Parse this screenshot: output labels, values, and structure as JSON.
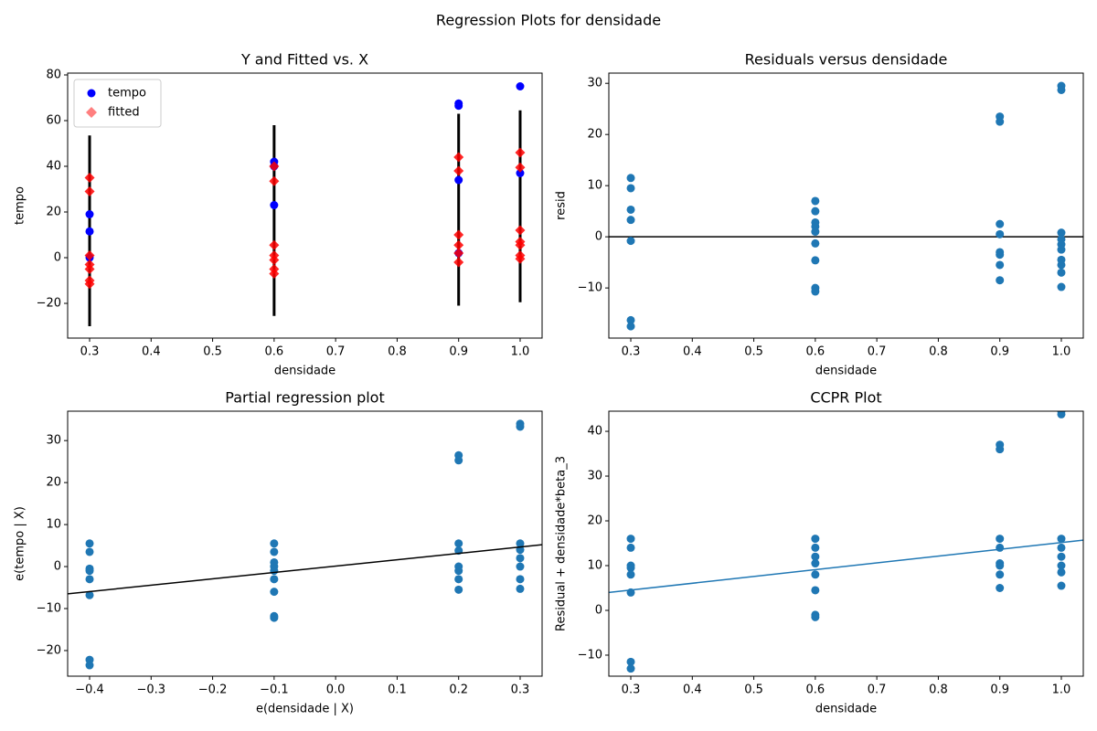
{
  "title": "Regression Plots for densidade",
  "chart_data": [
    {
      "type": "scatter",
      "title": "Y and Fitted vs. X",
      "x_label": "densidade",
      "y_label": "tempo",
      "xlim": [
        0.2643,
        1.0357
      ],
      "ylim": [
        -35.2,
        80.8
      ],
      "xticks": [
        0.3,
        0.4,
        0.5,
        0.6,
        0.7,
        0.8,
        0.9,
        {
          "value": 1,
          "label": "1.0"
        }
      ],
      "yticks": [
        {
          "value": -20,
          "label": "−20"
        },
        0,
        20,
        40,
        60,
        80
      ],
      "legend": "upper left",
      "intervals": {
        "color": "#000000",
        "x": [
          0.3,
          0.6,
          0.9,
          1.0
        ],
        "low": [
          -30,
          -25.5,
          -21,
          -19.5
        ],
        "high": [
          53.5,
          58,
          63,
          64.5
        ]
      },
      "series": [
        {
          "name": "tempo",
          "color": "#0000ff",
          "marker": "circle",
          "x": [
            0.3,
            0.3,
            0.3,
            0.6,
            0.6,
            0.6,
            0.9,
            0.9,
            0.9,
            0.9,
            1.0,
            1.0
          ],
          "values": [
            19,
            11.5,
            0,
            42,
            40,
            23,
            67.5,
            66.5,
            34,
            2,
            75,
            37
          ]
        },
        {
          "name": "fitted",
          "color": "#ff0000",
          "marker": "diamond",
          "x": [
            0.3,
            0.3,
            0.3,
            0.3,
            0.3,
            0.3,
            0.3,
            0.6,
            0.6,
            0.6,
            0.6,
            0.6,
            0.6,
            0.6,
            0.9,
            0.9,
            0.9,
            0.9,
            0.9,
            0.9,
            1.0,
            1.0,
            1.0,
            1.0,
            1.0,
            1.0,
            1.0
          ],
          "values": [
            35,
            29,
            1,
            -3,
            -5,
            -10,
            -11.5,
            40,
            33.5,
            5.5,
            1,
            -1,
            -5,
            -7,
            44,
            38,
            10,
            5.5,
            2,
            -2,
            46,
            39.5,
            12,
            7,
            5.5,
            1,
            -0.5
          ]
        }
      ]
    },
    {
      "type": "scatter",
      "title": "Residuals versus densidade",
      "x_label": "densidade",
      "y_label": "resid",
      "xlim": [
        0.2643,
        1.0357
      ],
      "ylim": [
        -19.8,
        32.0
      ],
      "xticks": [
        0.3,
        0.4,
        0.5,
        0.6,
        0.7,
        0.8,
        0.9,
        {
          "value": 1,
          "label": "1.0"
        }
      ],
      "yticks": [
        {
          "value": -10,
          "label": "−10"
        },
        0,
        10,
        20,
        30
      ],
      "hline": {
        "y": 0,
        "color": "#000000"
      },
      "series": [
        {
          "color": "#1f77b4",
          "marker": "circle",
          "x": [
            0.3,
            0.3,
            0.3,
            0.3,
            0.3,
            0.3,
            0.3,
            0.6,
            0.6,
            0.6,
            0.6,
            0.6,
            0.6,
            0.6,
            0.6,
            0.6,
            0.9,
            0.9,
            0.9,
            0.9,
            0.9,
            0.9,
            0.9,
            0.9,
            1.0,
            1.0,
            1.0,
            1.0,
            1.0,
            1.0,
            1.0,
            1.0,
            1.0,
            1.0
          ],
          "values": [
            11.5,
            9.5,
            5.3,
            3.3,
            -0.8,
            -16.3,
            -17.5,
            7,
            5,
            2.8,
            2,
            1,
            -1.3,
            -4.6,
            -10,
            -10.7,
            23.5,
            22.5,
            2.5,
            0.5,
            -3,
            -3.5,
            -5.5,
            -8.5,
            29.5,
            28.7,
            0.8,
            -0.5,
            -1.5,
            -2.5,
            -4.5,
            -5.5,
            -7,
            -9.8
          ]
        }
      ]
    },
    {
      "type": "scatter",
      "title": "Partial regression plot",
      "x_label": "e(densidade | X)",
      "y_label": "e(tempo | X)",
      "xlim": [
        -0.4357,
        0.3357
      ],
      "ylim": [
        -26.1,
        37.0
      ],
      "xticks": [
        {
          "value": -0.4,
          "label": "−0.4"
        },
        {
          "value": -0.3,
          "label": "−0.3"
        },
        {
          "value": -0.2,
          "label": "−0.2"
        },
        {
          "value": -0.1,
          "label": "−0.1"
        },
        {
          "value": 0,
          "label": "0.0"
        },
        0.1,
        0.2,
        0.3
      ],
      "yticks": [
        {
          "value": -20,
          "label": "−20"
        },
        {
          "value": -10,
          "label": "−10"
        },
        0,
        10,
        20,
        30
      ],
      "series": [
        {
          "color": "#1f77b4",
          "marker": "circle",
          "x": [
            -0.4,
            -0.4,
            -0.4,
            -0.4,
            -0.4,
            -0.4,
            -0.4,
            -0.4,
            -0.1,
            -0.1,
            -0.1,
            -0.1,
            -0.1,
            -0.1,
            -0.1,
            -0.1,
            -0.1,
            0.2,
            0.2,
            0.2,
            0.2,
            0.2,
            0.2,
            0.2,
            0.2,
            0.3,
            0.3,
            0.3,
            0.3,
            0.3,
            0.3,
            0.3,
            0.3
          ],
          "values": [
            5.5,
            3.5,
            -0.5,
            -1,
            -3,
            -6.8,
            -22.2,
            -23.5,
            5.5,
            3.5,
            1,
            0,
            -1,
            -3,
            -6,
            -11.8,
            -12.2,
            26.5,
            25.3,
            5.5,
            3.8,
            0,
            -1,
            -3,
            -5.5,
            34,
            33.3,
            5.5,
            4,
            2,
            0,
            -3,
            -5.3
          ]
        },
        {
          "color": "#000000",
          "marker": "line",
          "x": [
            -0.4357,
            0.3357
          ],
          "values": [
            -6.5,
            5.2
          ]
        }
      ]
    },
    {
      "type": "scatter",
      "title": "CCPR Plot",
      "x_label": "densidade",
      "y_label": "Residual + densidade*beta_3",
      "xlim": [
        0.2643,
        1.0357
      ],
      "ylim": [
        -14.7,
        44.5
      ],
      "xticks": [
        0.3,
        0.4,
        0.5,
        0.6,
        0.7,
        0.8,
        0.9,
        {
          "value": 1,
          "label": "1.0"
        }
      ],
      "yticks": [
        {
          "value": -10,
          "label": "−10"
        },
        0,
        10,
        20,
        30,
        40
      ],
      "series": [
        {
          "color": "#1f77b4",
          "marker": "circle",
          "x": [
            0.3,
            0.3,
            0.3,
            0.3,
            0.3,
            0.3,
            0.3,
            0.3,
            0.6,
            0.6,
            0.6,
            0.6,
            0.6,
            0.6,
            0.6,
            0.6,
            0.9,
            0.9,
            0.9,
            0.9,
            0.9,
            0.9,
            0.9,
            0.9,
            1.0,
            1.0,
            1.0,
            1.0,
            1.0,
            1.0,
            1.0,
            1.0
          ],
          "values": [
            16,
            14,
            10,
            9.5,
            8,
            4,
            -11.5,
            -13,
            16,
            14,
            12,
            10.5,
            8,
            4.5,
            -1,
            -1.5,
            37,
            36,
            16,
            14,
            10.5,
            10,
            8,
            5,
            44.5,
            43.8,
            16,
            14,
            12,
            10,
            8.5,
            5.5
          ]
        },
        {
          "color": "#1f77b4",
          "marker": "line",
          "x": [
            0.2643,
            1.0357
          ],
          "values": [
            4,
            15.7
          ]
        }
      ]
    }
  ]
}
